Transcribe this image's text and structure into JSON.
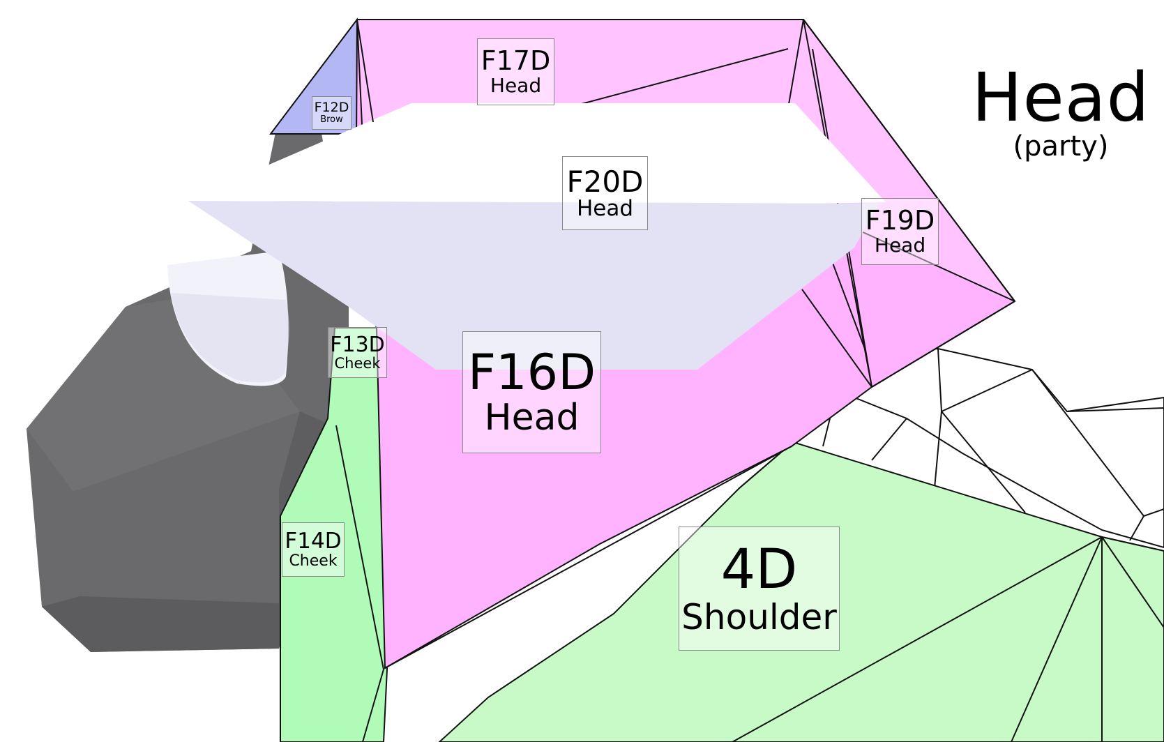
{
  "title": "Head",
  "subtitle": "(party)",
  "labels": [
    {
      "id": "f12d",
      "code": "F12D",
      "part": "Brow"
    },
    {
      "id": "f17d",
      "code": "F17D",
      "part": "Head"
    },
    {
      "id": "f20d",
      "code": "F20D",
      "part": "Head"
    },
    {
      "id": "f19d",
      "code": "F19D",
      "part": "Head"
    },
    {
      "id": "f13d",
      "code": "F13D",
      "part": "Cheek"
    },
    {
      "id": "f16d",
      "code": "F16D",
      "part": "Head"
    },
    {
      "id": "f14d",
      "code": "F14D",
      "part": "Cheek"
    },
    {
      "id": "4d",
      "code": "4D",
      "part": "Shoulder"
    }
  ],
  "colors": {
    "head_pink": "#ffb3ff",
    "head_pink_light": "#ffc4ff",
    "brow_blue": "#b3b8f5",
    "cheek_green": "#b0fbb8",
    "shoulder_green": "#c8fac8",
    "face_gray": "#666668",
    "visor_white": "#ffffff",
    "visor_lavender": "#e2e2f4",
    "edge": "#111111"
  }
}
